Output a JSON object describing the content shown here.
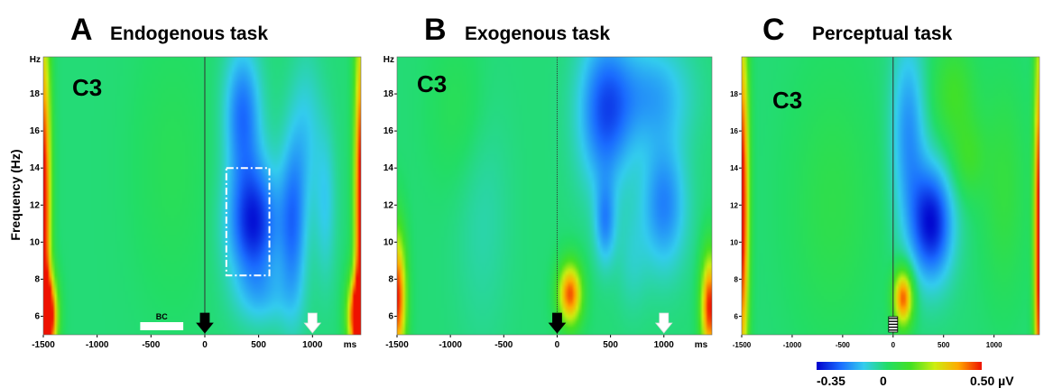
{
  "colors": {
    "cmap": [
      "#0000cc",
      "#1a6bff",
      "#33ccee",
      "#22dd66",
      "#44e022",
      "#ccee11",
      "#ffaa00",
      "#ee1100"
    ],
    "background": "#ffffff"
  },
  "ylabel": "Frequency (Hz)",
  "colorbar": {
    "min": -0.35,
    "zero": 0,
    "max": 0.5,
    "labels": [
      "-0.35",
      "0",
      "0.50 µV"
    ]
  },
  "chart_data": [
    {
      "type": "heatmap",
      "letter": "A",
      "title": "Endogenous task",
      "channel": "C3",
      "xlim": [
        -1500,
        1450
      ],
      "ylim": [
        5,
        20
      ],
      "xticks": [
        -1500,
        -1000,
        -500,
        0,
        500,
        1000
      ],
      "xtick_labels": [
        "-1500",
        "-1000",
        "-500",
        "0",
        "500",
        "1000"
      ],
      "x_unit": "ms",
      "yticks": [
        6,
        8,
        10,
        12,
        14,
        16,
        18
      ],
      "ytick_labels": [
        "6",
        "8",
        "10",
        "12",
        "14",
        "16",
        "18"
      ],
      "y_unit": "Hz",
      "baseline": {
        "label": "BC",
        "x_start": -600,
        "x_end": -200
      },
      "cue_arrow_x": 0,
      "target_arrow_x": 1000,
      "roi_box": {
        "x": [
          200,
          600
        ],
        "y": [
          8.2,
          14
        ]
      },
      "blobs": [
        {
          "x": 450,
          "y": 11,
          "sx": 170,
          "sy": 2.4,
          "v": -0.32
        },
        {
          "x": 350,
          "y": 17,
          "sx": 120,
          "sy": 2.5,
          "v": -0.22
        },
        {
          "x": 820,
          "y": 11,
          "sx": 90,
          "sy": 3.5,
          "v": -0.2
        },
        {
          "x": 1120,
          "y": 12,
          "sx": 70,
          "sy": 3.0,
          "v": -0.1
        },
        {
          "x": 950,
          "y": 16,
          "sx": 100,
          "sy": 3.0,
          "v": -0.09
        },
        {
          "x": 550,
          "y": 7,
          "sx": 180,
          "sy": 1.2,
          "v": -0.08
        },
        {
          "x": -300,
          "y": 14,
          "sx": 250,
          "sy": 5.0,
          "v": 0.04
        },
        {
          "x": -1500,
          "y": 12,
          "sx": 50,
          "sy": 7.0,
          "v": 0.55
        },
        {
          "x": -1450,
          "y": 6,
          "sx": 60,
          "sy": 1.5,
          "v": 0.5
        },
        {
          "x": 1450,
          "y": 12,
          "sx": 45,
          "sy": 7.0,
          "v": 0.55
        },
        {
          "x": 1400,
          "y": 6,
          "sx": 60,
          "sy": 1.5,
          "v": 0.45
        }
      ]
    },
    {
      "type": "heatmap",
      "letter": "B",
      "title": "Exogenous task",
      "channel": "C3",
      "xlim": [
        -1500,
        1450
      ],
      "ylim": [
        5,
        20
      ],
      "xticks": [
        -1500,
        -1000,
        -500,
        0,
        500,
        1000
      ],
      "xtick_labels": [
        "-1500",
        "-1000",
        "-500",
        "0",
        "500",
        "1000"
      ],
      "x_unit": "ms",
      "yticks": [
        6,
        8,
        10,
        12,
        14,
        16,
        18
      ],
      "ytick_labels": [
        "6",
        "8",
        "10",
        "12",
        "14",
        "16",
        "18"
      ],
      "y_unit": "Hz",
      "cue_arrow_x": 0,
      "target_arrow_x": 1000,
      "blobs": [
        {
          "x": 120,
          "y": 7.2,
          "sx": 80,
          "sy": 1.2,
          "v": 0.45
        },
        {
          "x": 450,
          "y": 17,
          "sx": 180,
          "sy": 3.0,
          "v": -0.25
        },
        {
          "x": 450,
          "y": 11,
          "sx": 70,
          "sy": 1.6,
          "v": -0.17
        },
        {
          "x": 1000,
          "y": 12,
          "sx": 150,
          "sy": 2.5,
          "v": -0.2
        },
        {
          "x": 900,
          "y": 18,
          "sx": 250,
          "sy": 2.0,
          "v": -0.15
        },
        {
          "x": 700,
          "y": 9,
          "sx": 100,
          "sy": 2.0,
          "v": -0.06
        },
        {
          "x": -700,
          "y": 12,
          "sx": 180,
          "sy": 5.0,
          "v": -0.05
        },
        {
          "x": -1500,
          "y": 7,
          "sx": 60,
          "sy": 2.5,
          "v": 0.5
        },
        {
          "x": 1430,
          "y": 6.5,
          "sx": 60,
          "sy": 2.0,
          "v": 0.5
        },
        {
          "x": -900,
          "y": 17,
          "sx": 200,
          "sy": 3.0,
          "v": 0.05
        }
      ]
    },
    {
      "type": "heatmap",
      "letter": "C",
      "title": "Perceptual task",
      "channel": "C3",
      "xlim": [
        -1500,
        1450
      ],
      "ylim": [
        5,
        20
      ],
      "xticks": [
        -1500,
        -1000,
        -500,
        0,
        500,
        1000
      ],
      "xtick_labels": [
        "-1500",
        "-1000",
        "-500",
        "0",
        "500",
        "1000"
      ],
      "yticks": [
        6,
        8,
        10,
        12,
        14,
        16,
        18
      ],
      "ytick_labels": [
        "6",
        "8",
        "10",
        "12",
        "14",
        "16",
        "18"
      ],
      "stim_marker_x": 0,
      "blobs": [
        {
          "x": 380,
          "y": 11,
          "sx": 150,
          "sy": 2.2,
          "v": -0.33
        },
        {
          "x": 150,
          "y": 16,
          "sx": 120,
          "sy": 3.5,
          "v": -0.18
        },
        {
          "x": 100,
          "y": 7.0,
          "sx": 70,
          "sy": 1.1,
          "v": 0.45
        },
        {
          "x": 600,
          "y": 18,
          "sx": 150,
          "sy": 2.0,
          "v": 0.12
        },
        {
          "x": 750,
          "y": 14.5,
          "sx": 120,
          "sy": 1.5,
          "v": 0.1
        },
        {
          "x": 1100,
          "y": 13,
          "sx": 150,
          "sy": 4.0,
          "v": 0.08
        },
        {
          "x": -1500,
          "y": 12,
          "sx": 50,
          "sy": 7.0,
          "v": 0.55
        },
        {
          "x": 1450,
          "y": 10,
          "sx": 40,
          "sy": 8.0,
          "v": 0.55
        },
        {
          "x": -600,
          "y": 12,
          "sx": 300,
          "sy": 5.0,
          "v": 0.06
        }
      ]
    }
  ]
}
